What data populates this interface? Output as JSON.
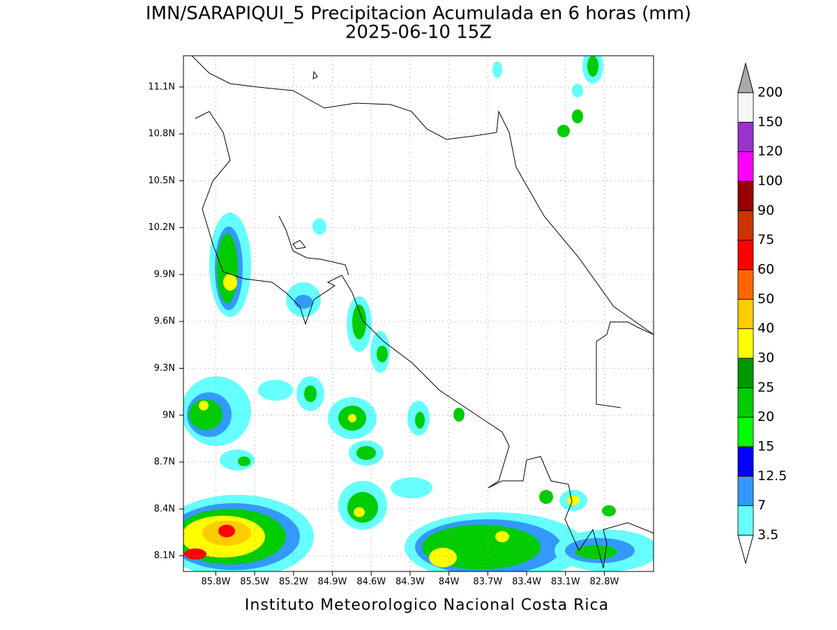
{
  "header": {
    "title": "IMN/SARAPIQUI_5 Precipitacion Acumulada en 6 horas (mm)",
    "subtitle": "2025-06-10 15Z"
  },
  "footer": "Instituto Meteorologico Nacional Costa Rica",
  "map": {
    "xlim": [
      -86.05,
      -82.42
    ],
    "ylim": [
      8.0,
      11.3
    ],
    "xticks": [
      {
        "value": -85.8,
        "label": "85.8W"
      },
      {
        "value": -85.5,
        "label": "85.5W"
      },
      {
        "value": -85.2,
        "label": "85.2W"
      },
      {
        "value": -84.9,
        "label": "84.9W"
      },
      {
        "value": -84.6,
        "label": "84.6W"
      },
      {
        "value": -84.3,
        "label": "84.3W"
      },
      {
        "value": -84,
        "label": "84W"
      },
      {
        "value": -83.7,
        "label": "83.7W"
      },
      {
        "value": -83.4,
        "label": "83.4W"
      },
      {
        "value": -83.1,
        "label": "83.1W"
      },
      {
        "value": -82.8,
        "label": "82.8W"
      }
    ],
    "yticks": [
      {
        "value": 8.1,
        "label": "8.1N"
      },
      {
        "value": 8.4,
        "label": "8.4N"
      },
      {
        "value": 8.7,
        "label": "8.7N"
      },
      {
        "value": 9,
        "label": "9N"
      },
      {
        "value": 9.3,
        "label": "9.3N"
      },
      {
        "value": 9.6,
        "label": "9.6N"
      },
      {
        "value": 9.9,
        "label": "9.9N"
      },
      {
        "value": 10.2,
        "label": "10.2N"
      },
      {
        "value": 10.5,
        "label": "10.5N"
      },
      {
        "value": 10.8,
        "label": "10.8N"
      },
      {
        "value": 11.1,
        "label": "11.1N"
      }
    ],
    "grid": true
  },
  "colorbar": {
    "levels": [
      3.5,
      7,
      12.5,
      15,
      20,
      25,
      30,
      40,
      50,
      60,
      75,
      90,
      100,
      120,
      150,
      200
    ],
    "colors": [
      "#66ffff",
      "#3399ff",
      "#0000ff",
      "#00ff00",
      "#00cc00",
      "#009900",
      "#ffff00",
      "#ffcc00",
      "#ff6600",
      "#ff0000",
      "#cc3300",
      "#990000",
      "#ff00ff",
      "#9933cc",
      "#f5f5f5"
    ],
    "under_color": "#ffffff",
    "over_color": "#aaaaaa"
  }
}
